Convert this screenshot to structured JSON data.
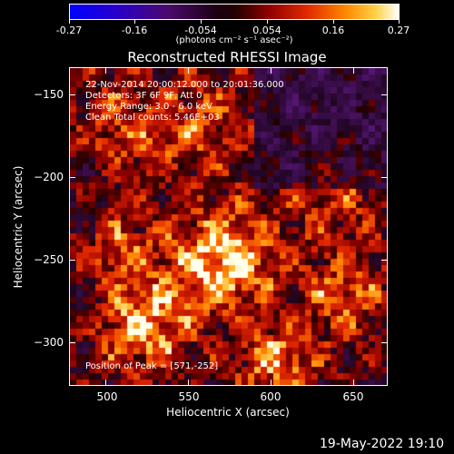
{
  "colorbar": {
    "tick_labels": [
      "-0.27",
      "-0.16",
      "-0.054",
      "0.054",
      "0.16",
      "0.27"
    ],
    "units": "(photons cm⁻² s⁻¹ asec⁻²)"
  },
  "title": "Reconstructed RHESSI Image",
  "annotations": {
    "time_range": "22-Nov-2014 20:00:12.000 to 20:01:36.000",
    "detectors": "Detectors: 3F 6F 9F, Att 0",
    "energy": "Energy Range: 3.0 - 6.0 keV",
    "clean": "Clean    Total counts: 5.46E+03",
    "peak": "Position of Peak = [571,-252]"
  },
  "axes": {
    "xlabel": "Heliocentric X (arcsec)",
    "ylabel": "Heliocentric Y (arcsec)",
    "xticks": [
      "500",
      "550",
      "600",
      "650"
    ],
    "yticks": [
      "−150",
      "−200",
      "−250",
      "−300"
    ],
    "xlim": [
      478,
      670
    ],
    "ylim": [
      -323,
      -130
    ]
  },
  "footer_timestamp": "19-May-2022 19:10"
}
